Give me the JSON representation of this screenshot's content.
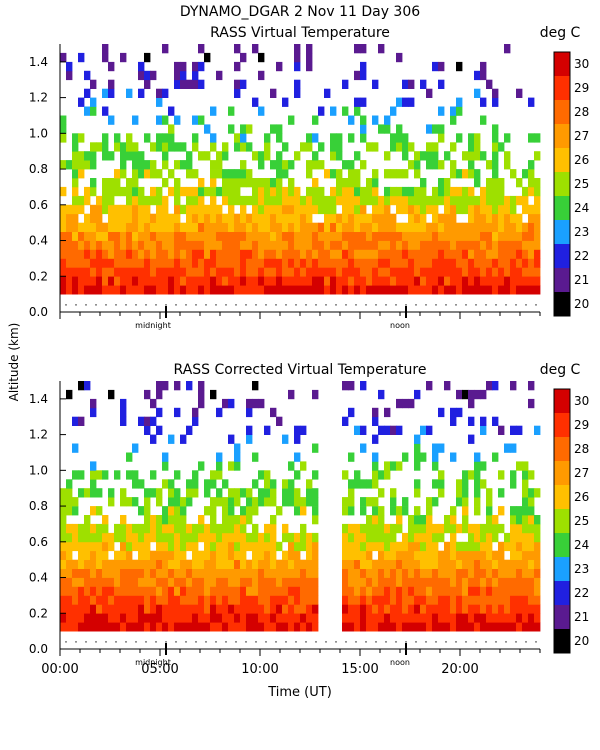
{
  "header": {
    "title": "DYNAMO_DGAR    2 Nov 11 Day 306"
  },
  "chart_data": [
    {
      "type": "heatmap",
      "title": "RASS Virtual Temperature",
      "units_label": "deg C",
      "ylabel": "Altitude (km)",
      "xlim": [
        0,
        24
      ],
      "ylim": [
        0,
        1.5
      ],
      "yticks": [
        "0.0",
        "0.2",
        "0.4",
        "0.6",
        "0.8",
        "1.0",
        "1.2",
        "1.4"
      ],
      "ytick_values": [
        0,
        0.2,
        0.4,
        0.6,
        0.8,
        1.0,
        1.2,
        1.4
      ],
      "markers": [
        {
          "label": "midnight",
          "x": 5.3
        },
        {
          "label": "noon",
          "x": 17.3
        }
      ],
      "profile": [
        {
          "alt": 0.1,
          "temp": 29.5
        },
        {
          "alt": 0.2,
          "temp": 28.7
        },
        {
          "alt": 0.3,
          "temp": 28.0
        },
        {
          "alt": 0.4,
          "temp": 27.2
        },
        {
          "alt": 0.5,
          "temp": 26.4
        },
        {
          "alt": 0.6,
          "temp": 25.4
        },
        {
          "alt": 0.8,
          "temp": 24.6
        },
        {
          "alt": 1.0,
          "temp": 24.0
        },
        {
          "alt": 1.2,
          "temp": 22.0
        },
        {
          "alt": 1.4,
          "temp": 21.0
        }
      ],
      "gaps": []
    },
    {
      "type": "heatmap",
      "title": "RASS Corrected Virtual Temperature",
      "units_label": "deg C",
      "xlabel": "Time (UT)",
      "xlim": [
        0,
        24
      ],
      "ylim": [
        0,
        1.5
      ],
      "xticks": [
        "00:00",
        "05:00",
        "10:00",
        "15:00",
        "20:00"
      ],
      "xtick_values": [
        0,
        5,
        10,
        15,
        20
      ],
      "yticks": [
        "0.0",
        "0.2",
        "0.4",
        "0.6",
        "0.8",
        "1.0",
        "1.2",
        "1.4"
      ],
      "ytick_values": [
        0,
        0.2,
        0.4,
        0.6,
        0.8,
        1.0,
        1.2,
        1.4
      ],
      "markers": [
        {
          "label": "midnight",
          "x": 5.3
        },
        {
          "label": "noon",
          "x": 17.3
        }
      ],
      "profile": [
        {
          "alt": 0.1,
          "temp": 29.7
        },
        {
          "alt": 0.2,
          "temp": 28.9
        },
        {
          "alt": 0.3,
          "temp": 28.1
        },
        {
          "alt": 0.4,
          "temp": 27.3
        },
        {
          "alt": 0.5,
          "temp": 26.5
        },
        {
          "alt": 0.6,
          "temp": 25.5
        },
        {
          "alt": 0.8,
          "temp": 24.7
        },
        {
          "alt": 1.0,
          "temp": 24.1
        },
        {
          "alt": 1.2,
          "temp": 22.0
        },
        {
          "alt": 1.4,
          "temp": 21.0
        }
      ],
      "gaps": [
        [
          13.2,
          14.1
        ]
      ]
    }
  ],
  "colorbar": {
    "labels": [
      "30",
      "29",
      "28",
      "27",
      "26",
      "25",
      "24",
      "23",
      "22",
      "21",
      "20"
    ],
    "colors": [
      "#d40000",
      "#ff3000",
      "#ff6a00",
      "#ff9a00",
      "#ffc000",
      "#9ee000",
      "#38d038",
      "#1aa0ff",
      "#2020e0",
      "#5a1a90",
      "#000000"
    ]
  }
}
